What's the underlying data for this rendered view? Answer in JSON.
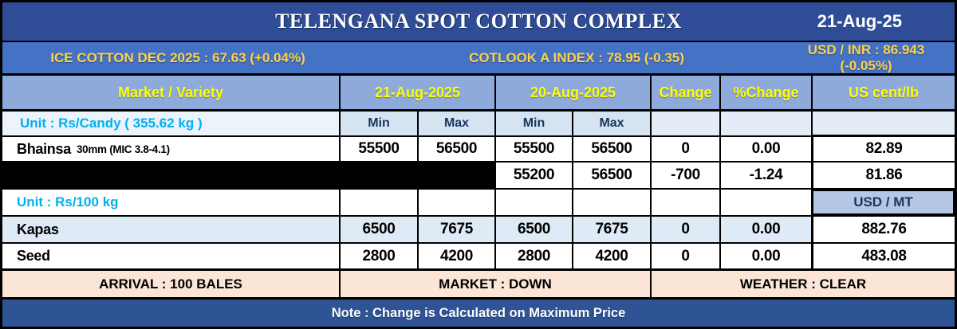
{
  "window": {
    "title": "TELENGANA SPOT COTTON COMPLEX",
    "date": "21-Aug-25"
  },
  "ticker": {
    "ice_cotton": "ICE COTTON DEC 2025 : 67.63 (+0.04%)",
    "cotlook_index": "COTLOOK A INDEX : 78.95 (-0.35)",
    "usd_inr": "USD / INR : 86.943 (-0.05%)"
  },
  "table": {
    "headers": {
      "market_variety": "Market / Variety",
      "date_today": "21-Aug-2025",
      "date_prev": "20-Aug-2025",
      "change": "Change",
      "pct_change": "%Change",
      "us_cent_lb": "US cent/lb",
      "min": "Min",
      "max": "Max",
      "usd_mt": "USD / MT"
    },
    "units": {
      "candy": "Unit : Rs/Candy ( 355.62 kg )",
      "per_100kg": "Unit : Rs/100 kg"
    },
    "rows": {
      "bhainsa": {
        "name": "Bhainsa",
        "spec": "30mm (MIC 3.8-4.1)",
        "today_min": "55500",
        "today_max": "56500",
        "prev_min": "55500",
        "prev_max": "56500",
        "change": "0",
        "pct_change": "0.00",
        "us_cent": "82.89"
      },
      "redacted": {
        "prev_min": "55200",
        "prev_max": "56500",
        "change": "-700",
        "pct_change": "-1.24",
        "us_cent": "81.86"
      },
      "kapas": {
        "name": "Kapas",
        "today_min": "6500",
        "today_max": "7675",
        "prev_min": "6500",
        "prev_max": "7675",
        "change": "0",
        "pct_change": "0.00",
        "us_cent": "882.76"
      },
      "seed": {
        "name": "Seed",
        "today_min": "2800",
        "today_max": "4200",
        "prev_min": "2800",
        "prev_max": "4200",
        "change": "0",
        "pct_change": "0.00",
        "us_cent": "483.08"
      }
    }
  },
  "summary": {
    "arrival": "ARRIVAL : 100 BALES",
    "market": "MARKET : DOWN",
    "weather": "WEATHER : CLEAR"
  },
  "footer": {
    "note": "Note : Change is Calculated on Maximum Price"
  },
  "colors": {
    "title_bg": "#2E4D96",
    "ticker_bg": "#4472C4",
    "ticker_text": "#FFD24A",
    "header_bg": "#8EAADB",
    "header_text": "#FFFF00",
    "unit_text": "#00B0F0",
    "minmax_bg": "#D6E4F2",
    "minmax_text": "#17375E",
    "row_alt_bg": "#DEEBF7",
    "usd_mt_bg": "#B4C7E7",
    "summary_bg": "#FBE5D6",
    "note_bg": "#2F5496",
    "redaction": "#000000"
  }
}
